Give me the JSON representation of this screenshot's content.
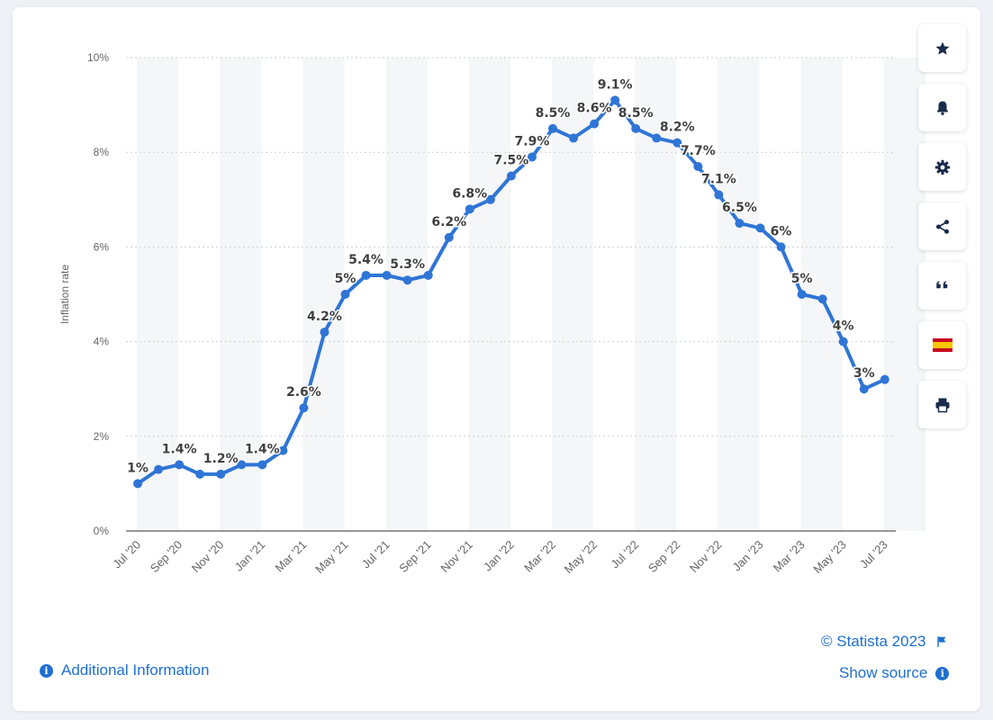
{
  "colors": {
    "line": "#2f75d6",
    "grid": "#cfcfcf",
    "band": "#f5f6f8",
    "axis_text": "#666666",
    "label_text": "#404040",
    "link": "#1f6fd1"
  },
  "toolbar": {
    "items": [
      {
        "name": "bookmark-button",
        "icon": "star-icon"
      },
      {
        "name": "notification-button",
        "icon": "bell-icon"
      },
      {
        "name": "settings-button",
        "icon": "gear-icon"
      },
      {
        "name": "share-button",
        "icon": "share-icon"
      },
      {
        "name": "cite-button",
        "icon": "quote-icon"
      },
      {
        "name": "language-button",
        "icon": "spain-flag-icon"
      },
      {
        "name": "print-button",
        "icon": "printer-icon"
      }
    ]
  },
  "footer": {
    "copyright": "© Statista 2023",
    "show_source": "Show source",
    "additional_info": "Additional Information"
  },
  "chart_data": {
    "type": "line",
    "ylabel": "Inflation rate",
    "xlabel": "",
    "ylim": [
      0,
      10
    ],
    "yticks": [
      "0%",
      "2%",
      "4%",
      "6%",
      "8%",
      "10%"
    ],
    "ytick_values": [
      0,
      2,
      4,
      6,
      8,
      10
    ],
    "grid": true,
    "x": [
      "Jul '20",
      "Aug '20",
      "Sep '20",
      "Oct '20",
      "Nov '20",
      "Dec '20",
      "Jan '21",
      "Feb '21",
      "Mar '21",
      "Apr '21",
      "May '21",
      "Jun '21",
      "Jul '21",
      "Aug '21",
      "Sep '21",
      "Oct '21",
      "Nov '21",
      "Dec '21",
      "Jan '22",
      "Feb '22",
      "Mar '22",
      "Apr '22",
      "May '22",
      "Jun '22",
      "Jul '22",
      "Aug '22",
      "Sep '22",
      "Oct '22",
      "Nov '22",
      "Dec '22",
      "Jan '23",
      "Feb '23",
      "Mar '23",
      "Apr '23",
      "May '23",
      "Jun '23",
      "Jul '23"
    ],
    "xtick_labels": [
      "Jul '20",
      "Sep '20",
      "Nov '20",
      "Jan '21",
      "Mar '21",
      "May '21",
      "Jul '21",
      "Sep '21",
      "Nov '21",
      "Jan '22",
      "Mar '22",
      "May '22",
      "Jul '22",
      "Sep '22",
      "Nov '22",
      "Jan '23",
      "Mar '23",
      "May '23",
      "Jul '23"
    ],
    "series": [
      {
        "values": [
          1.0,
          1.3,
          1.4,
          1.2,
          1.2,
          1.4,
          1.4,
          1.7,
          2.6,
          4.2,
          5.0,
          5.4,
          5.4,
          5.3,
          5.4,
          6.2,
          6.8,
          7.0,
          7.5,
          7.9,
          8.5,
          8.3,
          8.6,
          9.1,
          8.5,
          8.3,
          8.2,
          7.7,
          7.1,
          6.5,
          6.4,
          6.0,
          5.0,
          4.9,
          4.0,
          3.0,
          3.2
        ]
      }
    ],
    "data_labels": [
      {
        "index": 0,
        "text": "1%"
      },
      {
        "index": 2,
        "text": "1.4%"
      },
      {
        "index": 4,
        "text": "1.2%"
      },
      {
        "index": 6,
        "text": "1.4%"
      },
      {
        "index": 8,
        "text": "2.6%"
      },
      {
        "index": 9,
        "text": "4.2%"
      },
      {
        "index": 10,
        "text": "5%"
      },
      {
        "index": 11,
        "text": "5.4%"
      },
      {
        "index": 13,
        "text": "5.3%"
      },
      {
        "index": 15,
        "text": "6.2%"
      },
      {
        "index": 16,
        "text": "6.8%"
      },
      {
        "index": 18,
        "text": "7.5%"
      },
      {
        "index": 19,
        "text": "7.9%"
      },
      {
        "index": 20,
        "text": "8.5%"
      },
      {
        "index": 22,
        "text": "8.6%"
      },
      {
        "index": 23,
        "text": "9.1%"
      },
      {
        "index": 24,
        "text": "8.5%"
      },
      {
        "index": 26,
        "text": "8.2%"
      },
      {
        "index": 27,
        "text": "7.7%"
      },
      {
        "index": 28,
        "text": "7.1%"
      },
      {
        "index": 29,
        "text": "6.5%"
      },
      {
        "index": 31,
        "text": "6%"
      },
      {
        "index": 32,
        "text": "5%"
      },
      {
        "index": 34,
        "text": "4%"
      },
      {
        "index": 35,
        "text": "3%"
      }
    ]
  }
}
